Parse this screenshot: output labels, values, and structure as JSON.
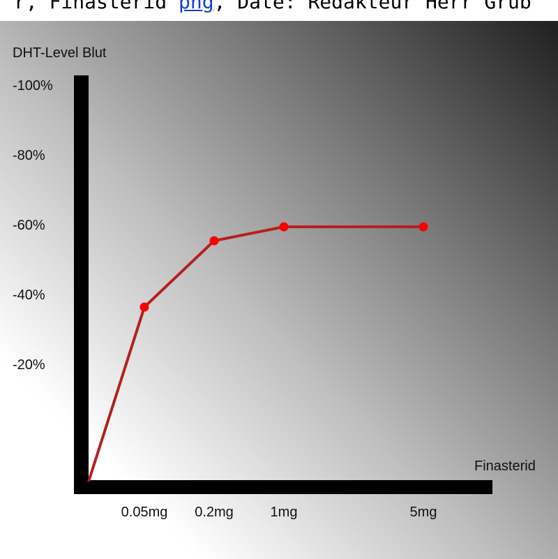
{
  "caption": {
    "before": "r, Finasterid ",
    "link": "png",
    "after": ", Date: Redakteur Herr Grub"
  },
  "chart_data": {
    "type": "line",
    "ylabel": "DHT-Level Blut",
    "xlabel": "Finasterid",
    "categories": [
      "0.05mg",
      "0.2mg",
      "1mg",
      "5mg"
    ],
    "x_tick_labels": [
      "0.05mg",
      "0.2mg",
      "1mg",
      "5mg"
    ],
    "y_tick_labels": [
      "-100%",
      "-80%",
      "-60%",
      "-40%",
      "-20%"
    ],
    "y_ticks": [
      -100,
      -80,
      -60,
      -40,
      -20
    ],
    "ylim": [
      0,
      -115
    ],
    "series": [
      {
        "x": [
          0,
          1,
          2,
          3,
          4
        ],
        "values": [
          0,
          -50,
          -69,
          -73,
          -73
        ]
      }
    ],
    "line_color": "#b52020",
    "marker_color": "#ff0000",
    "axis_color": "#000000",
    "grid": false
  }
}
